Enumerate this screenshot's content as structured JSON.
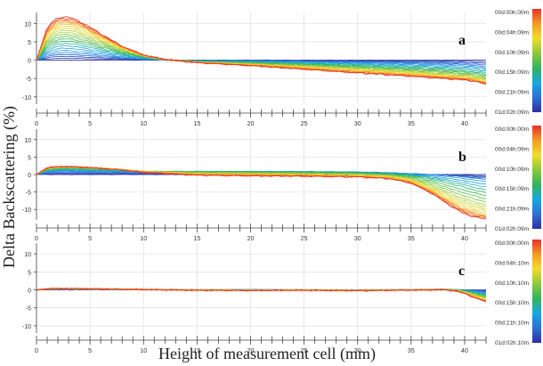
{
  "figure": {
    "ylabel": "Delta Backscattering (%)",
    "xlabel": "Height of measurement cell (mm)"
  },
  "chart_data": [
    {
      "type": "line",
      "panel_label": "a",
      "xlim": [
        0,
        42
      ],
      "ylim": [
        -12,
        13
      ],
      "x_ticks": [
        "0",
        "5",
        "10",
        "15",
        "20",
        "25",
        "30",
        "35",
        "40"
      ],
      "y_ticks": [
        "10",
        "5",
        "0",
        "-5",
        "-10"
      ],
      "grid": true,
      "legend": {
        "position": "right",
        "entries": [
          "00d:00h:00m",
          "00d:04h:09m",
          "00d:10h:09m",
          "00d:15h:09m",
          "00d:21h:09m",
          "01d:02h:09m"
        ]
      },
      "series": [
        {
          "x": [
            0,
            1,
            2,
            3,
            4,
            5,
            6,
            8,
            10,
            12,
            15,
            20,
            25,
            30,
            35,
            38,
            40,
            41,
            42
          ],
          "y": [
            0,
            0,
            0,
            0,
            0,
            0,
            0,
            0,
            0,
            0,
            0,
            0,
            0,
            0,
            0,
            0,
            0,
            0,
            0
          ]
        },
        {
          "x": [
            0,
            1,
            2,
            3,
            4,
            5,
            6,
            8,
            10,
            12,
            15,
            20,
            25,
            30,
            35,
            38,
            40,
            41,
            42
          ],
          "y": [
            0,
            1.5,
            2.2,
            2.2,
            2,
            1.7,
            1.4,
            0.8,
            0.3,
            0,
            -0.1,
            -0.2,
            -0.4,
            -0.6,
            -0.9,
            -1.1,
            -1.3,
            -1.6,
            -2
          ]
        },
        {
          "x": [
            0,
            1,
            2,
            3,
            4,
            5,
            6,
            8,
            10,
            12,
            15,
            20,
            25,
            30,
            35,
            38,
            40,
            41,
            42
          ],
          "y": [
            0,
            3.5,
            5,
            5.1,
            4.6,
            3.9,
            3.2,
            1.9,
            0.8,
            0.1,
            -0.3,
            -0.6,
            -1,
            -1.5,
            -2.1,
            -2.5,
            -2.9,
            -3.2,
            -3.8
          ]
        },
        {
          "x": [
            0,
            1,
            2,
            3,
            4,
            5,
            6,
            8,
            10,
            12,
            15,
            20,
            25,
            30,
            35,
            38,
            40,
            41,
            42
          ],
          "y": [
            0,
            5.5,
            7.6,
            7.7,
            7,
            6,
            4.9,
            2.8,
            1.1,
            0.1,
            -0.5,
            -1,
            -1.6,
            -2.3,
            -3.1,
            -3.7,
            -4.1,
            -4.5,
            -5.2
          ]
        },
        {
          "x": [
            0,
            1,
            2,
            3,
            4,
            5,
            6,
            8,
            10,
            12,
            15,
            20,
            25,
            30,
            35,
            38,
            40,
            41,
            42
          ],
          "y": [
            0,
            7.5,
            10,
            10.2,
            9.3,
            7.9,
            6.4,
            3.5,
            1.3,
            0.2,
            -0.6,
            -1.3,
            -2.1,
            -3,
            -3.9,
            -4.5,
            -4.9,
            -5.3,
            -6
          ]
        },
        {
          "x": [
            0,
            1,
            2,
            3,
            4,
            5,
            6,
            8,
            10,
            12,
            15,
            20,
            25,
            30,
            35,
            38,
            40,
            41,
            42
          ],
          "y": [
            0,
            9,
            11.7,
            11.8,
            10.6,
            9,
            7.2,
            3.8,
            1.4,
            0.2,
            -0.7,
            -1.5,
            -2.5,
            -3.5,
            -4.4,
            -5,
            -5.4,
            -5.8,
            -6.6
          ]
        }
      ]
    },
    {
      "type": "line",
      "panel_label": "b",
      "xlim": [
        0,
        42
      ],
      "ylim": [
        -13,
        13
      ],
      "x_ticks": [
        "0",
        "5",
        "10",
        "15",
        "20",
        "25",
        "30",
        "35",
        "40"
      ],
      "y_ticks": [
        "10",
        "5",
        "0",
        "-5",
        "-10"
      ],
      "grid": true,
      "legend": {
        "position": "right",
        "entries": [
          "00d:00h:00m",
          "00d:04h:09m",
          "00d:10h:09m",
          "00d:15h:09m",
          "00d:21h:09m",
          "01d:02h:09m"
        ]
      },
      "series": [
        {
          "x": [
            0,
            1,
            2,
            3,
            5,
            8,
            10,
            15,
            20,
            25,
            30,
            33,
            35,
            37,
            38,
            39,
            40,
            41,
            42
          ],
          "y": [
            0,
            0,
            0,
            0,
            0,
            0,
            0,
            0,
            0,
            0,
            0,
            0,
            0,
            0,
            0,
            0,
            0,
            0,
            0
          ]
        },
        {
          "x": [
            0,
            1,
            2,
            3,
            5,
            8,
            10,
            15,
            20,
            25,
            30,
            33,
            35,
            37,
            38,
            39,
            40,
            41,
            42
          ],
          "y": [
            0,
            0.8,
            1,
            1,
            0.9,
            0.8,
            0.7,
            0.8,
            0.9,
            0.9,
            0.8,
            0.6,
            0.3,
            0,
            -0.2,
            -0.5,
            -0.8,
            -1.2,
            -1.5
          ]
        },
        {
          "x": [
            0,
            1,
            2,
            3,
            5,
            8,
            10,
            15,
            20,
            25,
            30,
            33,
            35,
            37,
            38,
            39,
            40,
            41,
            42
          ],
          "y": [
            0,
            1.3,
            1.6,
            1.7,
            1.5,
            1.2,
            0.9,
            0.9,
            0.8,
            0.7,
            0.5,
            0.2,
            -0.3,
            -1.3,
            -2,
            -2.8,
            -3.5,
            -4.3,
            -5
          ]
        },
        {
          "x": [
            0,
            1,
            2,
            3,
            5,
            8,
            10,
            15,
            20,
            25,
            30,
            33,
            35,
            37,
            38,
            39,
            40,
            41,
            42
          ],
          "y": [
            0,
            1.7,
            2,
            2.1,
            1.9,
            1.4,
            0.9,
            0.5,
            0.4,
            0.3,
            0.1,
            -0.3,
            -1.2,
            -3.3,
            -4.6,
            -5.9,
            -7.1,
            -8.1,
            -8.9
          ]
        },
        {
          "x": [
            0,
            1,
            2,
            3,
            5,
            8,
            10,
            15,
            20,
            25,
            30,
            33,
            35,
            37,
            38,
            39,
            40,
            41,
            42
          ],
          "y": [
            0,
            1.9,
            2.2,
            2.2,
            2,
            1.4,
            0.8,
            0.1,
            -0.1,
            -0.2,
            -0.4,
            -0.9,
            -2,
            -4.8,
            -6.6,
            -8.3,
            -9.9,
            -10.8,
            -11.5
          ]
        },
        {
          "x": [
            0,
            1,
            2,
            3,
            5,
            8,
            10,
            15,
            20,
            25,
            30,
            33,
            35,
            37,
            38,
            39,
            40,
            41,
            42
          ],
          "y": [
            0,
            2,
            2.3,
            2.3,
            2,
            1.3,
            0.6,
            -0.2,
            -0.4,
            -0.5,
            -0.7,
            -1.2,
            -2.5,
            -5.5,
            -7.6,
            -9.6,
            -11.3,
            -12.2,
            -12.8
          ]
        }
      ]
    },
    {
      "type": "line",
      "panel_label": "c",
      "xlim": [
        0,
        42
      ],
      "ylim": [
        -12,
        13
      ],
      "x_ticks": [
        "0",
        "5",
        "10",
        "15",
        "20",
        "25",
        "30",
        "35",
        "40"
      ],
      "y_ticks": [
        "10",
        "5",
        "0",
        "-5",
        "-10"
      ],
      "grid": true,
      "legend": {
        "position": "right",
        "entries": [
          "00d:00h:00m",
          "00d:04h:10m",
          "00d:10h:10m",
          "00d:15h:10m",
          "00d:21h:10m",
          "01d:02h:10m"
        ]
      },
      "series": [
        {
          "x": [
            0,
            1,
            2,
            5,
            10,
            15,
            20,
            25,
            30,
            35,
            38,
            39,
            40,
            41,
            42
          ],
          "y": [
            0,
            0,
            0,
            0,
            0,
            0,
            0,
            0,
            0,
            0,
            0,
            0,
            0,
            0,
            0
          ]
        },
        {
          "x": [
            0,
            1,
            2,
            5,
            10,
            15,
            20,
            25,
            30,
            35,
            38,
            39,
            40,
            41,
            42
          ],
          "y": [
            0,
            0.1,
            0.2,
            0.1,
            0,
            0,
            0.1,
            0,
            0,
            0.1,
            0.2,
            0.1,
            0,
            -0.3,
            -0.8
          ]
        },
        {
          "x": [
            0,
            1,
            2,
            5,
            10,
            15,
            20,
            25,
            30,
            35,
            38,
            39,
            40,
            41,
            42
          ],
          "y": [
            0,
            0.2,
            0.3,
            0.2,
            0.1,
            0,
            0,
            0,
            -0.1,
            0,
            0.2,
            0.1,
            -0.3,
            -0.9,
            -1.6
          ]
        },
        {
          "x": [
            0,
            1,
            2,
            5,
            10,
            15,
            20,
            25,
            30,
            35,
            38,
            39,
            40,
            41,
            42
          ],
          "y": [
            0,
            0.3,
            0.3,
            0.2,
            0.1,
            0,
            -0.1,
            0,
            -0.1,
            0,
            0.1,
            0,
            -0.5,
            -1.4,
            -2.3
          ]
        },
        {
          "x": [
            0,
            1,
            2,
            5,
            10,
            15,
            20,
            25,
            30,
            35,
            38,
            39,
            40,
            41,
            42
          ],
          "y": [
            0,
            0.3,
            0.4,
            0.3,
            0.1,
            -0.1,
            -0.1,
            -0.1,
            -0.2,
            0,
            0.1,
            -0.1,
            -0.8,
            -1.9,
            -2.9
          ]
        },
        {
          "x": [
            0,
            1,
            2,
            5,
            10,
            15,
            20,
            25,
            30,
            35,
            38,
            39,
            40,
            41,
            42
          ],
          "y": [
            0,
            0.3,
            0.4,
            0.3,
            0.1,
            -0.1,
            -0.2,
            -0.1,
            -0.2,
            -0.1,
            0,
            -0.2,
            -1,
            -2.3,
            -3.3
          ]
        }
      ]
    }
  ],
  "colors": {
    "gradient": [
      "#2f2fa0",
      "#2d6fd6",
      "#18a8e0",
      "#32b45a",
      "#8cc83c",
      "#f0dc28",
      "#f59a23",
      "#e8302a"
    ],
    "axis": "#444444",
    "grid": "#d9d9d9",
    "text": "#333333"
  }
}
